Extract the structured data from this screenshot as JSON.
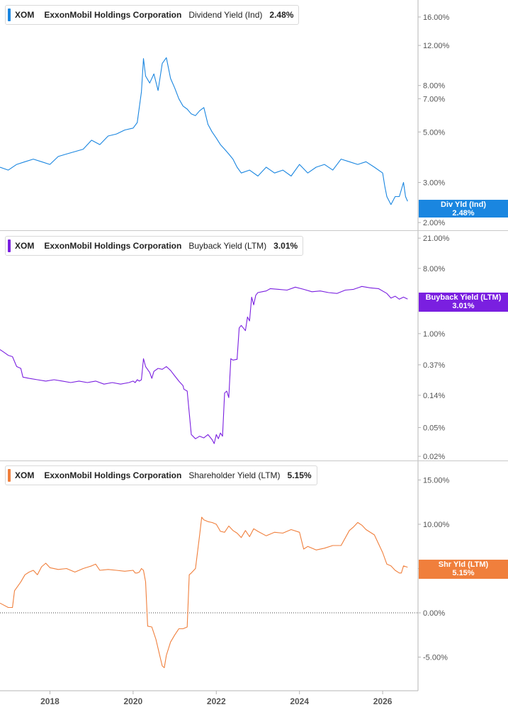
{
  "chart_data": [
    {
      "type": "line",
      "ticker": "XOM",
      "company": "ExxonMobil Holdings Corporation",
      "metric": "Dividend Yield (Ind)",
      "value_label": "2.48%",
      "flag_title": "Div Yld (Ind)",
      "flag_value": "2.48%",
      "faint_value": "2.37%",
      "color": "#1a86e0",
      "log_scale": true,
      "ylim": [
        1.85,
        19.0
      ],
      "ticks": [
        {
          "v": 16,
          "label": "16.00%"
        },
        {
          "v": 12,
          "label": "12.00%"
        },
        {
          "v": 8,
          "label": "8.00%"
        },
        {
          "v": 7,
          "label": "7.00%"
        },
        {
          "v": 5,
          "label": "5.00%"
        },
        {
          "v": 3,
          "label": "3.00%"
        },
        {
          "v": 2,
          "label": "2.00%"
        }
      ],
      "series": [
        {
          "x": [
            2016.8,
            2017.0,
            2017.2,
            2017.4,
            2017.6,
            2017.8,
            2018.0,
            2018.2,
            2018.4,
            2018.6,
            2018.8,
            2019.0,
            2019.2,
            2019.4,
            2019.6,
            2019.8,
            2020.0,
            2020.1,
            2020.2,
            2020.25,
            2020.3,
            2020.4,
            2020.5,
            2020.6,
            2020.7,
            2020.8,
            2020.9,
            2021.0,
            2021.1,
            2021.2,
            2021.3,
            2021.4,
            2021.5,
            2021.6,
            2021.7,
            2021.8,
            2021.9,
            2022.0,
            2022.1,
            2022.2,
            2022.3,
            2022.4,
            2022.5,
            2022.6,
            2022.8,
            2023.0,
            2023.2,
            2023.4,
            2023.6,
            2023.8,
            2024.0,
            2024.2,
            2024.4,
            2024.6,
            2024.8,
            2025.0,
            2025.2,
            2025.4,
            2025.6,
            2025.8,
            2026.0,
            2026.05,
            2026.1,
            2026.2,
            2026.3,
            2026.4,
            2026.5,
            2026.55,
            2026.6
          ],
          "y": [
            3.5,
            3.4,
            3.6,
            3.7,
            3.8,
            3.7,
            3.6,
            3.9,
            4.0,
            4.1,
            4.2,
            4.6,
            4.4,
            4.8,
            4.9,
            5.1,
            5.2,
            5.5,
            7.5,
            10.5,
            8.8,
            8.2,
            9.0,
            7.6,
            10.0,
            10.6,
            8.6,
            7.8,
            7.0,
            6.5,
            6.3,
            6.0,
            5.9,
            6.2,
            6.4,
            5.4,
            5.0,
            4.7,
            4.4,
            4.2,
            4.0,
            3.8,
            3.5,
            3.3,
            3.4,
            3.2,
            3.5,
            3.3,
            3.4,
            3.2,
            3.6,
            3.3,
            3.5,
            3.6,
            3.4,
            3.8,
            3.7,
            3.6,
            3.7,
            3.5,
            3.3,
            2.9,
            2.6,
            2.4,
            2.6,
            2.6,
            3.0,
            2.6,
            2.48
          ]
        }
      ]
    },
    {
      "type": "line",
      "ticker": "XOM",
      "company": "ExxonMobil Holdings Corporation",
      "metric": "Buyback Yield (LTM)",
      "value_label": "3.01%",
      "flag_title": "Buyback Yield (LTM)",
      "flag_value": "3.01%",
      "color": "#7a1fe0",
      "log_scale": true,
      "ylim": [
        0.0175,
        27.0
      ],
      "ticks": [
        {
          "v": 21,
          "label": "21.00%"
        },
        {
          "v": 8,
          "label": "8.00%"
        },
        {
          "v": 1,
          "label": "1.00%"
        },
        {
          "v": 0.37,
          "label": "0.37%"
        },
        {
          "v": 0.14,
          "label": "0.14%"
        },
        {
          "v": 0.05,
          "label": "0.05%"
        },
        {
          "v": 0.02,
          "label": "0.02%"
        }
      ],
      "series": [
        {
          "x": [
            2016.8,
            2016.9,
            2017.0,
            2017.1,
            2017.2,
            2017.3,
            2017.35,
            2017.5,
            2017.7,
            2017.9,
            2018.1,
            2018.3,
            2018.5,
            2018.7,
            2018.9,
            2019.1,
            2019.3,
            2019.5,
            2019.7,
            2019.9,
            2020.0,
            2020.05,
            2020.1,
            2020.15,
            2020.2,
            2020.25,
            2020.3,
            2020.4,
            2020.45,
            2020.5,
            2020.6,
            2020.7,
            2020.8,
            2020.9,
            2021.0,
            2021.1,
            2021.2,
            2021.22,
            2021.3,
            2021.4,
            2021.5,
            2021.6,
            2021.7,
            2021.8,
            2021.9,
            2021.95,
            2022.0,
            2022.05,
            2022.1,
            2022.15,
            2022.2,
            2022.25,
            2022.3,
            2022.35,
            2022.4,
            2022.5,
            2022.55,
            2022.6,
            2022.7,
            2022.75,
            2022.8,
            2022.85,
            2022.9,
            2022.95,
            2023.0,
            2023.1,
            2023.2,
            2023.3,
            2023.5,
            2023.7,
            2023.9,
            2024.1,
            2024.3,
            2024.5,
            2024.7,
            2024.9,
            2025.1,
            2025.3,
            2025.5,
            2025.7,
            2025.9,
            2026.1,
            2026.2,
            2026.3,
            2026.4,
            2026.5,
            2026.6
          ],
          "y": [
            0.6,
            0.55,
            0.5,
            0.48,
            0.35,
            0.33,
            0.25,
            0.24,
            0.23,
            0.22,
            0.23,
            0.22,
            0.21,
            0.22,
            0.21,
            0.22,
            0.2,
            0.21,
            0.2,
            0.21,
            0.22,
            0.21,
            0.23,
            0.22,
            0.23,
            0.45,
            0.35,
            0.29,
            0.24,
            0.3,
            0.33,
            0.32,
            0.35,
            0.31,
            0.26,
            0.22,
            0.19,
            0.17,
            0.16,
            0.04,
            0.035,
            0.038,
            0.036,
            0.04,
            0.034,
            0.03,
            0.04,
            0.035,
            0.042,
            0.038,
            0.15,
            0.16,
            0.13,
            0.45,
            0.43,
            0.44,
            1.2,
            1.3,
            1.1,
            1.7,
            1.5,
            3.2,
            2.5,
            3.4,
            3.7,
            3.8,
            3.9,
            4.2,
            4.1,
            4.0,
            4.4,
            4.1,
            3.8,
            3.9,
            3.7,
            3.6,
            4.0,
            4.1,
            4.5,
            4.3,
            4.2,
            3.6,
            3.1,
            3.3,
            3.0,
            3.2,
            3.01
          ]
        }
      ]
    },
    {
      "type": "line",
      "ticker": "XOM",
      "company": "ExxonMobil Holdings Corporation",
      "metric": "Shareholder Yield (LTM)",
      "value_label": "5.15%",
      "flag_title": "Shr Yld (LTM)",
      "flag_value": "5.15%",
      "faint_value": "5.00%",
      "color": "#f07f3c",
      "log_scale": false,
      "ylim": [
        -8.8,
        17.2
      ],
      "ticks": [
        {
          "v": 15,
          "label": "15.00%"
        },
        {
          "v": 10,
          "label": "10.00%"
        },
        {
          "v": 5,
          "label": "5.00%"
        },
        {
          "v": 0,
          "label": "0.00%"
        },
        {
          "v": -5,
          "label": "-5.00%"
        }
      ],
      "zero_line": true,
      "series": [
        {
          "x": [
            2016.8,
            2017.0,
            2017.1,
            2017.15,
            2017.3,
            2017.4,
            2017.5,
            2017.6,
            2017.7,
            2017.8,
            2017.9,
            2018.0,
            2018.2,
            2018.4,
            2018.6,
            2018.8,
            2019.0,
            2019.1,
            2019.2,
            2019.4,
            2019.6,
            2019.8,
            2020.0,
            2020.05,
            2020.1,
            2020.15,
            2020.2,
            2020.25,
            2020.3,
            2020.35,
            2020.45,
            2020.55,
            2020.65,
            2020.7,
            2020.75,
            2020.8,
            2020.9,
            2021.0,
            2021.1,
            2021.2,
            2021.3,
            2021.35,
            2021.4,
            2021.5,
            2021.6,
            2021.65,
            2021.7,
            2021.8,
            2021.9,
            2022.0,
            2022.1,
            2022.2,
            2022.3,
            2022.4,
            2022.5,
            2022.6,
            2022.7,
            2022.8,
            2022.9,
            2023.0,
            2023.2,
            2023.4,
            2023.6,
            2023.8,
            2024.0,
            2024.1,
            2024.2,
            2024.4,
            2024.6,
            2024.8,
            2025.0,
            2025.2,
            2025.3,
            2025.4,
            2025.5,
            2025.6,
            2025.8,
            2026.0,
            2026.1,
            2026.2,
            2026.3,
            2026.4,
            2026.45,
            2026.5,
            2026.6
          ],
          "y": [
            1.1,
            0.6,
            0.6,
            2.5,
            3.5,
            4.3,
            4.6,
            4.8,
            4.3,
            5.2,
            5.6,
            5.1,
            4.9,
            5.0,
            4.6,
            5.0,
            5.3,
            5.5,
            4.8,
            4.9,
            4.8,
            4.7,
            4.8,
            4.5,
            4.5,
            4.6,
            5.0,
            4.8,
            3.5,
            -1.5,
            -1.6,
            -3.0,
            -5.0,
            -6.0,
            -6.2,
            -4.8,
            -3.3,
            -2.5,
            -1.8,
            -1.8,
            -1.6,
            4.3,
            4.5,
            5.0,
            8.8,
            10.8,
            10.5,
            10.3,
            10.2,
            10.0,
            9.2,
            9.1,
            9.8,
            9.3,
            9.0,
            8.5,
            9.3,
            8.6,
            9.5,
            9.2,
            8.7,
            9.1,
            9.0,
            9.4,
            9.1,
            7.2,
            7.5,
            7.1,
            7.3,
            7.6,
            7.6,
            9.3,
            9.7,
            10.2,
            9.9,
            9.4,
            8.8,
            6.8,
            5.5,
            5.3,
            4.8,
            4.5,
            4.5,
            5.3,
            5.15
          ]
        }
      ]
    }
  ],
  "x_axis": {
    "ticks": [
      {
        "v": 2018,
        "label": "2018"
      },
      {
        "v": 2020,
        "label": "2020"
      },
      {
        "v": 2022,
        "label": "2022"
      },
      {
        "v": 2024,
        "label": "2024"
      },
      {
        "v": 2026,
        "label": "2026"
      }
    ]
  }
}
